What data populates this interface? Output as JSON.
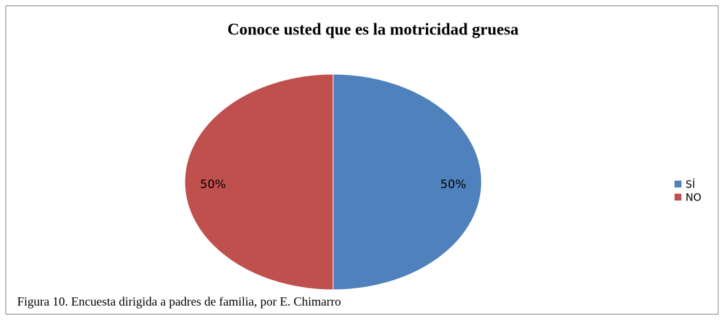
{
  "chart_data": {
    "type": "pie",
    "title": "Conoce usted que es la motricidad  gruesa",
    "categories": [
      "SÍ",
      "NO"
    ],
    "values": [
      50,
      50
    ],
    "value_labels": [
      "50%",
      "50%"
    ],
    "colors": [
      "#4f81bd",
      "#c0504d"
    ],
    "legend": "right",
    "caption": "Figura 10. Encuesta dirigida  a padres de familia,  por E. Chimarro"
  }
}
